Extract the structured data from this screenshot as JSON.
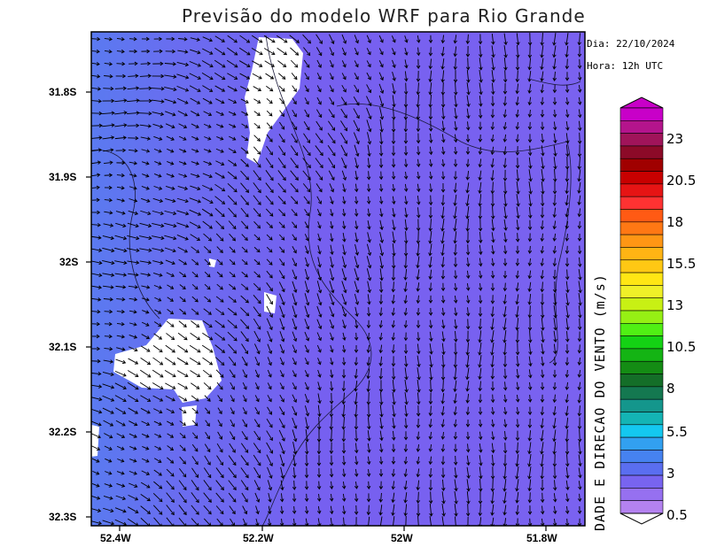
{
  "title": "Previsão do modelo WRF para Rio Grande",
  "date_line": "Dia: 22/10/2024",
  "time_line": "Hora: 12h UTC",
  "colorbar": {
    "label": "DADE E DIRECAO DO VENTO (m/s)",
    "ticks": [
      "23",
      "20.5",
      "18",
      "15.5",
      "13",
      "10.5",
      "8",
      "5.5",
      "3",
      "0.5"
    ],
    "colors": [
      "#c800c8",
      "#b4148c",
      "#a0145a",
      "#8c0a28",
      "#a00000",
      "#c80000",
      "#e61414",
      "#ff3232",
      "#ff5a14",
      "#ff7814",
      "#ff9614",
      "#ffb414",
      "#ffc814",
      "#ffe614",
      "#f0f028",
      "#c8f014",
      "#96f014",
      "#50f014",
      "#14d214",
      "#14b414",
      "#148c14",
      "#146e28",
      "#147850",
      "#14968c",
      "#14b4b4",
      "#14c8f0",
      "#32a0f0",
      "#4682f0",
      "#5a6ef0",
      "#7864f0",
      "#9670f0",
      "#b482f0"
    ]
  },
  "axes": {
    "lat_ticks": [
      "31.8S",
      "31.9S",
      "32S",
      "32.1S",
      "32.2S",
      "32.3S"
    ],
    "lon_ticks": [
      "52.4W",
      "52.2W",
      "52W",
      "51.8W"
    ]
  },
  "background_color": "#7060f0",
  "arrow_color": "#000000"
}
